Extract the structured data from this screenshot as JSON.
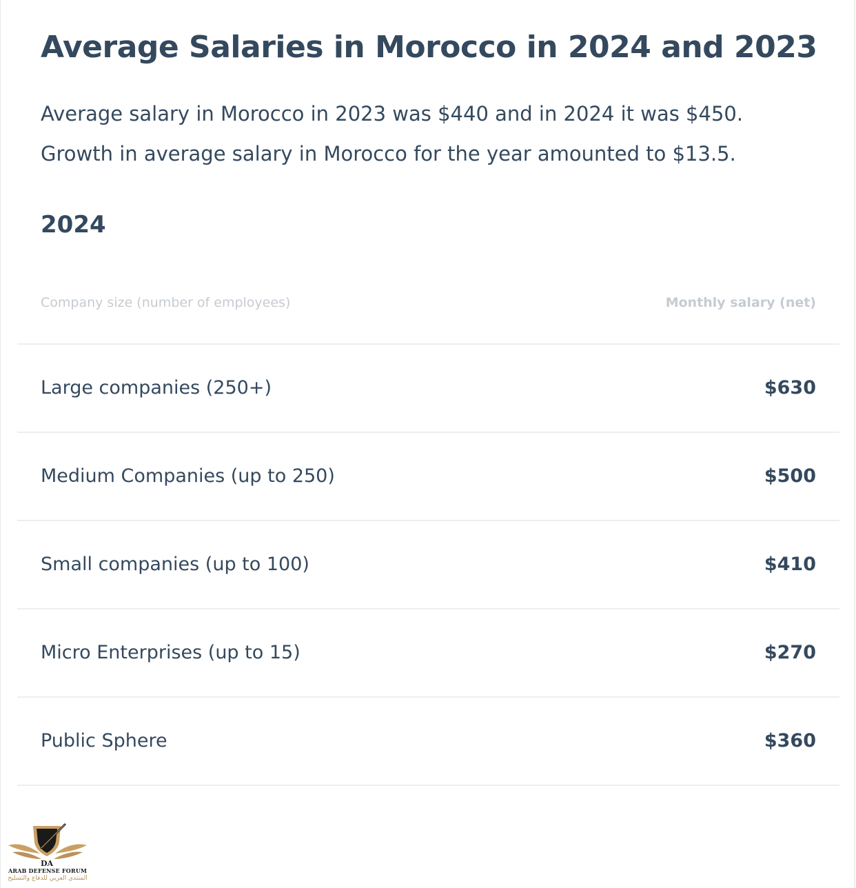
{
  "page": {
    "title": "Average Salaries in Morocco in 2024 and 2023",
    "summary_line1": "Average salary in Morocco in 2023 was $440 and in 2024 it was $450.",
    "summary_line2": "Growth in average salary in Morocco for the year amounted to $13.5.",
    "year_heading": "2024"
  },
  "table": {
    "header_company": "Company size (number of employees)",
    "header_salary": "Monthly salary (net)",
    "rows": [
      {
        "name": "Large companies (250+)",
        "salary": "$630"
      },
      {
        "name": "Medium Companies (up to 250)",
        "salary": "$500"
      },
      {
        "name": "Small companies (up to 100)",
        "salary": "$410"
      },
      {
        "name": "Micro Enterprises (up to 15)",
        "salary": "$270"
      },
      {
        "name": "Public Sphere",
        "salary": "$360"
      }
    ]
  },
  "watermark": {
    "monogram": "DA",
    "latin_text": "ARAB DEFENSE FORUM",
    "arabic_text": "المنتدى العربي للدفاع والتسليح",
    "colors": {
      "gold": "#c9a064",
      "dark": "#1a1a1a"
    }
  },
  "colors": {
    "text": "#34495e",
    "muted": "#c5cbd1",
    "divider": "#eceef0",
    "background": "#ffffff"
  }
}
